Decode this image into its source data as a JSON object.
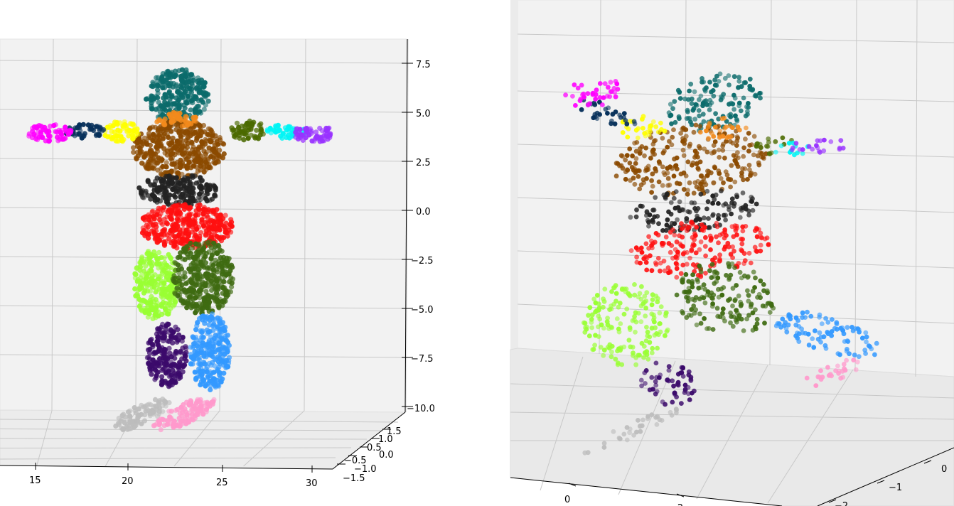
{
  "chart_data": [
    {
      "type": "scatter",
      "projection": "3d",
      "title": "",
      "grid": true,
      "axes": {
        "x": {
          "ticks": [
            "15",
            "20",
            "25",
            "30"
          ]
        },
        "y": {
          "ticks": [
            "1.5",
            "1.0",
            "0.5",
            "0.0",
            "−0.5",
            "−1.0",
            "−1.5"
          ]
        },
        "z": {
          "ticks": [
            "7.5",
            "5.0",
            "2.5",
            "0.0",
            "−2.5",
            "−5.0",
            "−7.5",
            "−10.0"
          ]
        }
      },
      "segments": [
        {
          "part": "head",
          "color": "#0b6b6b"
        },
        {
          "part": "torso-upper",
          "color": "#8b4a00"
        },
        {
          "part": "neck",
          "color": "#f28a1c"
        },
        {
          "part": "left-shoulder",
          "color": "#ffff00"
        },
        {
          "part": "left-upper-arm",
          "color": "#06305a"
        },
        {
          "part": "left-hand",
          "color": "#ff00ff"
        },
        {
          "part": "right-shoulder",
          "color": "#4b6a00"
        },
        {
          "part": "right-upper-arm",
          "color": "#00f5f5"
        },
        {
          "part": "right-hand",
          "color": "#9933ff"
        },
        {
          "part": "waist",
          "color": "#222222"
        },
        {
          "part": "hips",
          "color": "#ff1010"
        },
        {
          "part": "left-thigh",
          "color": "#99ff33"
        },
        {
          "part": "right-thigh",
          "color": "#3f6b12"
        },
        {
          "part": "left-shin",
          "color": "#3b0a6b"
        },
        {
          "part": "right-shin",
          "color": "#3399ff"
        },
        {
          "part": "left-foot",
          "color": "#bdbdbd"
        },
        {
          "part": "right-foot",
          "color": "#ff99cc"
        }
      ]
    },
    {
      "type": "scatter",
      "projection": "3d",
      "title": "",
      "grid": true,
      "axes": {
        "x": {
          "ticks": [
            "0",
            "−2"
          ]
        },
        "y": {
          "ticks": [
            "−2",
            "−1",
            "0"
          ]
        }
      },
      "segments": [
        {
          "part": "head",
          "color": "#0b6b6b"
        },
        {
          "part": "torso-upper",
          "color": "#8b4a00"
        },
        {
          "part": "neck",
          "color": "#f28a1c"
        },
        {
          "part": "left-shoulder",
          "color": "#ffff00"
        },
        {
          "part": "left-upper-arm",
          "color": "#06305a"
        },
        {
          "part": "left-hand",
          "color": "#ff00ff"
        },
        {
          "part": "right-shoulder",
          "color": "#4b6a00"
        },
        {
          "part": "right-upper-arm",
          "color": "#00f5f5"
        },
        {
          "part": "right-hand",
          "color": "#9933ff"
        },
        {
          "part": "waist",
          "color": "#222222"
        },
        {
          "part": "hips",
          "color": "#ff1010"
        },
        {
          "part": "left-thigh",
          "color": "#99ff33"
        },
        {
          "part": "right-thigh",
          "color": "#3f6b12"
        },
        {
          "part": "left-shin",
          "color": "#3b0a6b"
        },
        {
          "part": "right-shin",
          "color": "#3399ff"
        },
        {
          "part": "left-foot",
          "color": "#bdbdbd"
        },
        {
          "part": "right-foot",
          "color": "#ff99cc"
        }
      ]
    }
  ]
}
